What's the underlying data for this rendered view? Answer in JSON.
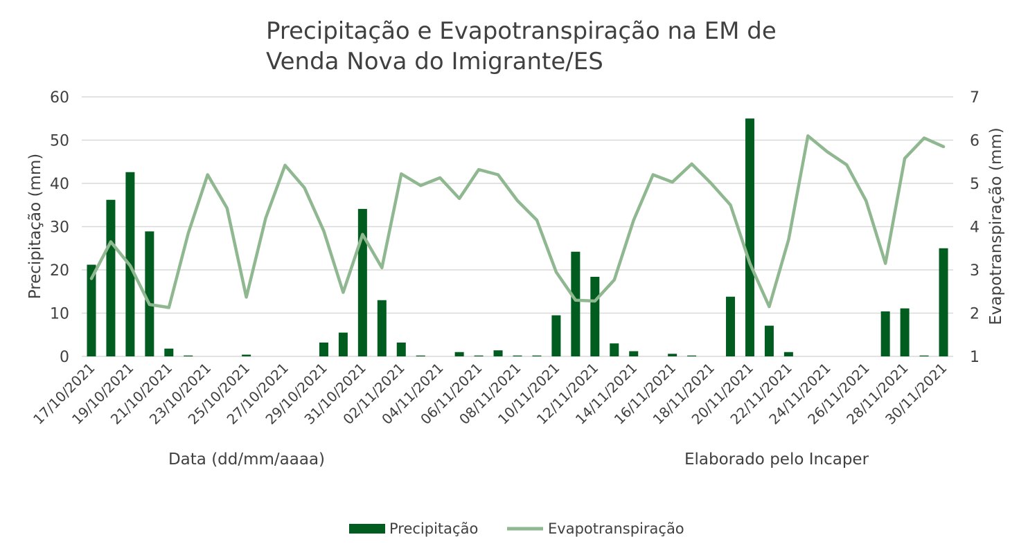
{
  "chart_data": {
    "type": "bar",
    "title": "Precipitação e Evapotranspiração na EM de Venda Nova do Imigrante/ES",
    "title_lines": [
      "Precipitação e Evapotranspiração na EM de",
      "Venda Nova do Imigrante/ES"
    ],
    "xlabel": "Data (dd/mm/aaaa)",
    "ylabel": "Precipitação (mm)",
    "y2label": "Evapotranspiração (mm)",
    "note": "Elaborado pelo Incaper",
    "ylim": [
      0,
      60
    ],
    "y2lim": [
      1,
      7
    ],
    "yticks": [
      0,
      10,
      20,
      30,
      40,
      50,
      60
    ],
    "y2ticks": [
      1,
      2,
      3,
      4,
      5,
      6,
      7
    ],
    "grid": true,
    "legend_position": "bottom",
    "x_tick_labels": [
      "17/10/2021",
      "19/10/2021",
      "21/10/2021",
      "23/10/2021",
      "25/10/2021",
      "27/10/2021",
      "29/10/2021",
      "31/10/2021",
      "02/11/2021",
      "04/11/2021",
      "06/11/2021",
      "08/11/2021",
      "10/11/2021",
      "12/11/2021",
      "14/11/2021",
      "16/11/2021",
      "18/11/2021",
      "20/11/2021",
      "22/11/2021",
      "24/11/2021",
      "26/11/2021",
      "28/11/2021",
      "30/11/2021"
    ],
    "categories": [
      "17/10/2021",
      "18/10/2021",
      "19/10/2021",
      "20/10/2021",
      "21/10/2021",
      "22/10/2021",
      "23/10/2021",
      "24/10/2021",
      "25/10/2021",
      "26/10/2021",
      "27/10/2021",
      "28/10/2021",
      "29/10/2021",
      "30/10/2021",
      "31/10/2021",
      "01/11/2021",
      "02/11/2021",
      "03/11/2021",
      "04/11/2021",
      "05/11/2021",
      "06/11/2021",
      "07/11/2021",
      "08/11/2021",
      "09/11/2021",
      "10/11/2021",
      "11/11/2021",
      "12/11/2021",
      "13/11/2021",
      "14/11/2021",
      "15/11/2021",
      "16/11/2021",
      "17/11/2021",
      "18/11/2021",
      "19/11/2021",
      "20/11/2021",
      "21/11/2021",
      "22/11/2021",
      "23/11/2021",
      "24/11/2021",
      "25/11/2021",
      "26/11/2021",
      "27/11/2021",
      "28/11/2021",
      "29/11/2021",
      "30/11/2021"
    ],
    "series": [
      {
        "name": "Precipitação",
        "kind": "bar",
        "axis": "left",
        "color": "#005c1f",
        "values": [
          21.2,
          36.2,
          42.6,
          28.9,
          1.8,
          0.2,
          0,
          0,
          0.4,
          0,
          0,
          0,
          3.2,
          5.5,
          34.1,
          13.0,
          3.2,
          0.2,
          0,
          1.0,
          0.2,
          1.4,
          0.2,
          0.2,
          9.5,
          24.2,
          18.4,
          3.0,
          1.2,
          0,
          0.6,
          0.2,
          0,
          13.8,
          55.0,
          7.1,
          1.0,
          0,
          0,
          0,
          0,
          10.4,
          11.1,
          0.2,
          25.0
        ]
      },
      {
        "name": "Evapotranspiração",
        "kind": "line",
        "axis": "right",
        "color": "#8fb890",
        "values": [
          2.8,
          3.65,
          3.1,
          2.2,
          2.13,
          3.85,
          5.2,
          4.43,
          2.37,
          4.2,
          5.42,
          4.9,
          3.9,
          2.48,
          3.82,
          3.05,
          5.22,
          4.95,
          5.13,
          4.65,
          5.32,
          5.2,
          4.6,
          4.15,
          2.95,
          2.3,
          2.28,
          2.77,
          4.15,
          5.2,
          5.03,
          5.45,
          5.0,
          4.5,
          3.15,
          2.15,
          3.7,
          6.1,
          5.73,
          5.43,
          4.6,
          3.15,
          5.58,
          6.05,
          5.85
        ]
      }
    ]
  }
}
